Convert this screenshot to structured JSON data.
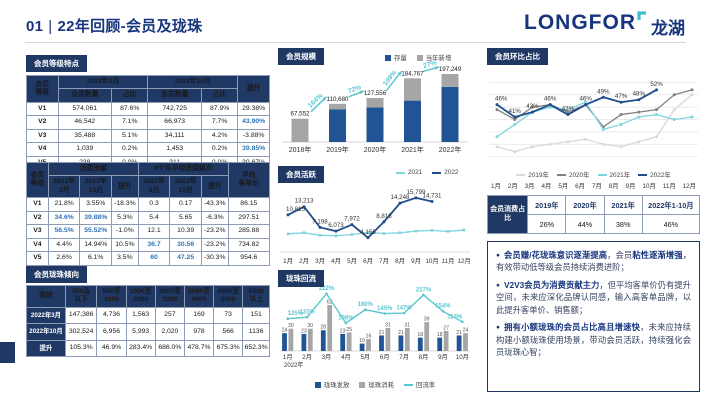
{
  "header": {
    "title_prefix": "01",
    "separator": "|",
    "title": "22年回顾-会员及珑珠",
    "logo_en": "LONGFOR",
    "logo_cn": "龙湖"
  },
  "colors": {
    "navy": "#1f3864",
    "accent_blue": "#2e75b6",
    "bar_blue": "#215494",
    "bar_gray": "#a6a6a6",
    "teal": "#5bc6d0",
    "line_2019": "#d9d9d9",
    "line_2020": "#808080",
    "line_2021": "#7fd4dc",
    "line_2022": "#1f4e8c"
  },
  "sections": {
    "member_levels": {
      "chip": "会员等级特点",
      "table": {
        "widths": [
          13,
          22,
          15,
          22,
          15,
          13
        ],
        "header_rows": [
          [
            {
              "t": "会员\n等级",
              "rs": 2
            },
            {
              "t": "2022年3月",
              "cs": 2
            },
            {
              "t": "2022年10月",
              "cs": 2
            },
            {
              "t": "提升",
              "rs": 2
            }
          ],
          [
            {
              "t": "会员数量"
            },
            {
              "t": "占比"
            },
            {
              "t": "会员数量"
            },
            {
              "t": "占比"
            }
          ]
        ],
        "rows": [
          [
            {
              "t": "V1",
              "h": 1
            },
            "574,061",
            "87.6%",
            "742,725",
            "87.9%",
            "29.38%"
          ],
          [
            {
              "t": "V2",
              "h": 1
            },
            "46,542",
            "7.1%",
            "66,973",
            "7.7%",
            {
              "t": "43.90%",
              "hl": 1
            }
          ],
          [
            {
              "t": "V3",
              "h": 1
            },
            "35,488",
            "5.1%",
            "34,111",
            "4.2%",
            "-3.88%"
          ],
          [
            {
              "t": "V4",
              "h": 1
            },
            "1,039",
            "0.2%",
            "1,453",
            "0.2%",
            {
              "t": "39.85%",
              "hl": 1
            }
          ],
          [
            {
              "t": "V5",
              "h": 1
            },
            "238",
            "0.0%",
            "311",
            "0.0%",
            "30.67%"
          ]
        ]
      }
    },
    "member_spend": {
      "table": {
        "widths": [
          9,
          13,
          13,
          11,
          13,
          13,
          11,
          17
        ],
        "header_rows": [
          [
            {
              "t": "会员\n等级",
              "rs": 2
            },
            {
              "t": "消费贡献",
              "cs": 3
            },
            {
              "t": "6个月平均消费频次",
              "cs": 3
            },
            {
              "t": "平均\n客单价",
              "rs": 2
            }
          ],
          [
            {
              "t": "2022年\n3月"
            },
            {
              "t": "2022年\n10月"
            },
            {
              "t": "提升"
            },
            {
              "t": "2022年\n5月"
            },
            {
              "t": "2022年\n10月"
            },
            {
              "t": "提升"
            }
          ]
        ],
        "rows": [
          [
            {
              "t": "V1",
              "h": 1
            },
            "21.8%",
            "3.55%",
            "-18.3%",
            "0.3",
            "0.17",
            "-43.3%",
            "86.15"
          ],
          [
            {
              "t": "V2",
              "h": 1
            },
            {
              "t": "34.6%",
              "hl": 1
            },
            {
              "t": "39.88%",
              "hl": 1
            },
            "5.3%",
            "5.4",
            "5.65",
            "-6.3%",
            "297.51"
          ],
          [
            {
              "t": "V3",
              "h": 1
            },
            {
              "t": "56.5%",
              "hl": 1
            },
            {
              "t": "55.52%",
              "hl": 1
            },
            "-1.0%",
            "12.1",
            "10.39",
            "-23.2%",
            "285.88"
          ],
          [
            {
              "t": "V4",
              "h": 1
            },
            "4.4%",
            "14.94%",
            "10.5%",
            {
              "t": "36.7",
              "hl": 1
            },
            {
              "t": "30.56",
              "hl": 1
            },
            "-23.2%",
            "734.82"
          ],
          [
            {
              "t": "V5",
              "h": 1
            },
            "2.6%",
            "6.1%",
            "3.5%",
            {
              "t": "60",
              "hl": 1
            },
            {
              "t": "47.25",
              "hl": 1
            },
            "-30.3%",
            "954.6"
          ]
        ]
      }
    },
    "longzhu_tendency": {
      "chip": "会员珑珠倾向",
      "table": {
        "widths": [
          16,
          13,
          12,
          12,
          12,
          12,
          12,
          11
        ],
        "header_rows": [
          [
            {
              "t": "类别"
            },
            {
              "t": "500及\n以下"
            },
            {
              "t": "500至\n1000"
            },
            {
              "t": "1000至\n2000"
            },
            {
              "t": "2000至\n3000"
            },
            {
              "t": "3000至\n4000"
            },
            {
              "t": "4000至\n5000"
            },
            {
              "t": "5000\n以上"
            }
          ]
        ],
        "rows": [
          [
            {
              "t": "2022年3月",
              "nh": 1
            },
            "147,386",
            "4,736",
            "1,563",
            "257",
            "169",
            "73",
            "151"
          ],
          [
            {
              "t": "2022年10月",
              "nh": 1
            },
            "302,524",
            "6,956",
            "5,993",
            "2,020",
            "978",
            "566",
            "1136"
          ],
          [
            {
              "t": "提升",
              "nh": 1
            },
            "105.3%",
            "46.9%",
            "283.4%",
            "686.0%",
            "478.7%",
            "675.3%",
            "652.3%"
          ]
        ]
      }
    },
    "member_scale": {
      "chip": "会员规模"
    },
    "member_active": {
      "chip": "会员活跃"
    },
    "longzhu_flow": {
      "chip": "珑珠回流"
    },
    "mom_share": {
      "chip": "会员环比占比"
    },
    "spend_share": {
      "table": {
        "widths": [
          19,
          18,
          18,
          18,
          27
        ],
        "rows": [
          [
            {
              "t": "会员消费占比",
              "rs": 2,
              "nh": 1
            },
            {
              "t": "2019年",
              "b": 1
            },
            {
              "t": "2020年",
              "b": 1
            },
            {
              "t": "2021年",
              "b": 1
            },
            {
              "t": "2022年1-10月",
              "b": 1
            }
          ],
          [
            "26%",
            "44%",
            "38%",
            "46%"
          ]
        ]
      }
    },
    "insights": {
      "bullets": [
        [
          {
            "t": "会员赚/花珑珠意识逐渐提高",
            "b": 1
          },
          {
            "t": "，会员"
          },
          {
            "t": "粘性逐渐增强",
            "b": 1
          },
          {
            "t": "，有效带动低等级会员持续消费进阶；"
          }
        ],
        [
          {
            "t": "V2V3会员为消费贡献主力",
            "b": 1
          },
          {
            "t": "，但平均客单价仍有提升空间，未来应深化品牌认同感，输入高客单品牌，以此提升客单价、销售额；"
          }
        ],
        [
          {
            "t": "拥有小额珑珠的会员占比高且增速快",
            "b": 1
          },
          {
            "t": "，未来应持续构建小额珑珠使用场景，带动会员活跃，持续强化会员珑珠心智；"
          }
        ]
      ]
    }
  },
  "chart_data": [
    {
      "id": "member_scale",
      "type": "bar",
      "stacked": true,
      "title": "会员规模",
      "categories": [
        "2018年",
        "2019年",
        "2020年",
        "2021年",
        "2022年"
      ],
      "series": [
        {
          "name": "存量",
          "color": "#215494",
          "values": [
            0,
            95000,
            100000,
            120000,
            160000
          ]
        },
        {
          "name": "当年新增",
          "color": "#a6a6a6",
          "values": [
            67552,
            15680,
            27556,
            64767,
            37249
          ]
        }
      ],
      "total_labels": [
        "67,552",
        "110,680",
        "127,556",
        "184,767",
        "197,249"
      ],
      "growth_labels": [
        "164%",
        "72%",
        "109%",
        "27%"
      ],
      "legend_position": "top-right"
    },
    {
      "id": "member_active",
      "type": "line",
      "title": "会员活跃",
      "categories": [
        "1月",
        "2月",
        "3月",
        "4月",
        "5月",
        "6月",
        "7月",
        "8月",
        "9月",
        "10月",
        "11月",
        "12月"
      ],
      "ylim": [
        0,
        17500
      ],
      "series": [
        {
          "name": "2021",
          "color": "#7fd4dc",
          "values": [
            5300,
            5600,
            4900,
            4700,
            5100,
            5700,
            5400,
            5600,
            6100,
            6300,
            6000,
            6400
          ]
        },
        {
          "name": "2022",
          "color": "#1f4e8c",
          "values": [
            10815,
            13213,
            7198,
            6073,
            7972,
            4156,
            8818,
            14248,
            15799,
            14731
          ],
          "labels": [
            "10,815",
            "13,213",
            "7,198",
            "6,073",
            "7,972",
            "4,156",
            "8,818",
            "14,248",
            "15,799",
            "14,731"
          ]
        }
      ]
    },
    {
      "id": "longzhu_flow",
      "type": "combo",
      "title": "珑珠回流",
      "categories": [
        "1月",
        "2月",
        "3月",
        "4月",
        "5月",
        "6月",
        "7月",
        "8月",
        "9月",
        "10月"
      ],
      "x_sub_label": "2022年",
      "bars": [
        {
          "name": "珑珠发放",
          "color": "#215494",
          "values": [
            24,
            23,
            28,
            23,
            10,
            21,
            21,
            18,
            18,
            21
          ]
        },
        {
          "name": "珑珠消耗",
          "color": "#a6a6a6",
          "values": [
            30,
            30,
            62,
            25,
            16,
            31,
            31,
            39,
            27,
            24
          ]
        }
      ],
      "line": {
        "name": "回流率",
        "color": "#5bc6d0",
        "values": [
          125,
          131,
          222,
          108,
          160,
          145,
          147,
          217,
          154,
          113
        ],
        "labels": [
          "125%",
          "131%",
          "222%",
          "108%",
          "160%",
          "145%",
          "147%",
          "217%",
          "154%",
          "113%"
        ]
      }
    },
    {
      "id": "mom_share",
      "type": "line",
      "title": "会员环比占比",
      "gridlines": true,
      "categories": [
        "1月",
        "2月",
        "3月",
        "4月",
        "5月",
        "6月",
        "7月",
        "8月",
        "9月",
        "10月",
        "11月",
        "12月"
      ],
      "ylim": [
        22,
        58
      ],
      "series": [
        {
          "name": "2019年",
          "color": "#d9d9d9",
          "values": [
            29,
            27,
            29,
            30,
            31,
            32,
            30,
            29,
            31,
            33,
            44,
            50
          ]
        },
        {
          "name": "2020年",
          "color": "#808080",
          "values": [
            44,
            40,
            45,
            46,
            43,
            46,
            37,
            42,
            43,
            44,
            50,
            52
          ]
        },
        {
          "name": "2021年",
          "color": "#7fd4dc",
          "values": [
            33,
            38,
            43,
            45,
            44,
            47,
            36,
            38,
            41,
            42,
            40,
            41
          ]
        },
        {
          "name": "2022年",
          "color": "#1f4e8c",
          "values": [
            46,
            41,
            43,
            46,
            42,
            46,
            49,
            47,
            48,
            52
          ],
          "labels": [
            "46%",
            "41%",
            "43%",
            "46%",
            "42%",
            "46%",
            "49%",
            "47%",
            "48%",
            "52%"
          ]
        }
      ]
    }
  ]
}
